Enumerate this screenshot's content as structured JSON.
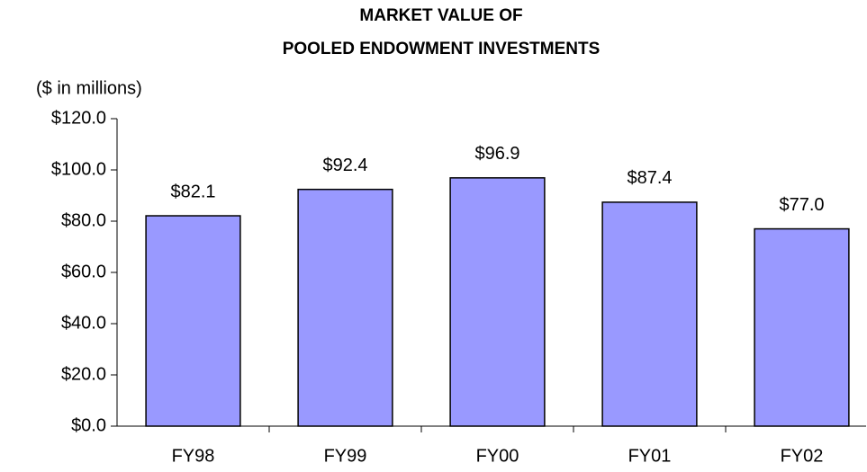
{
  "chart_data": {
    "type": "bar",
    "title": [
      "MARKET VALUE OF",
      "POOLED ENDOWMENT INVESTMENTS"
    ],
    "y_label": "($ in millions)",
    "categories": [
      "FY98",
      "FY99",
      "FY00",
      "FY01",
      "FY02"
    ],
    "values": [
      82.1,
      92.4,
      96.9,
      87.4,
      77.0
    ],
    "value_labels": [
      "$82.1",
      "$92.4",
      "$96.9",
      "$87.4",
      "$77.0"
    ],
    "color": "#9999ff",
    "ylim": [
      0,
      120
    ],
    "yticks": [
      {
        "value": 0,
        "label": "$0.0"
      },
      {
        "value": 20,
        "label": "$20.0"
      },
      {
        "value": 40,
        "label": "$40.0"
      },
      {
        "value": 60,
        "label": "$60.0"
      },
      {
        "value": 80,
        "label": "$80.0"
      },
      {
        "value": 100,
        "label": "$100.0"
      },
      {
        "value": 120,
        "label": "$120.0"
      }
    ],
    "grid": false
  }
}
